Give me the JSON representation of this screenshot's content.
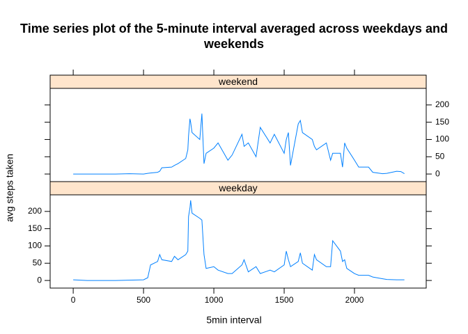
{
  "chart_data": {
    "type": "line",
    "title": "Time series plot of the 5-minute interval averaged across weekdays and weekends",
    "xlabel": "5min interval",
    "ylabel": "avg steps taken",
    "x": [
      0,
      100,
      200,
      300,
      400,
      500,
      530,
      550,
      600,
      615,
      630,
      700,
      720,
      745,
      800,
      815,
      820,
      830,
      835,
      845,
      900,
      915,
      930,
      945,
      1000,
      1030,
      1100,
      1130,
      1200,
      1215,
      1245,
      1300,
      1330,
      1400,
      1430,
      1500,
      1515,
      1530,
      1545,
      1600,
      1615,
      1630,
      1700,
      1715,
      1730,
      1800,
      1830,
      1845,
      1900,
      1915,
      1930,
      1945,
      2000,
      2030,
      2100,
      2130,
      2200,
      2230,
      2300,
      2330,
      2355
    ],
    "series": [
      {
        "name": "weekend",
        "color": "#0080ff",
        "values": [
          0,
          0,
          0,
          0,
          1,
          0,
          2,
          3,
          5,
          8,
          18,
          20,
          25,
          30,
          45,
          70,
          110,
          160,
          150,
          120,
          100,
          175,
          30,
          60,
          75,
          90,
          40,
          55,
          115,
          80,
          90,
          50,
          135,
          90,
          115,
          60,
          100,
          120,
          25,
          145,
          155,
          120,
          100,
          80,
          70,
          90,
          40,
          60,
          60,
          20,
          90,
          75,
          40,
          20,
          20,
          5,
          1,
          2,
          8,
          7,
          1
        ]
      },
      {
        "name": "weekday",
        "color": "#0080ff",
        "values": [
          2,
          0,
          0,
          0,
          1,
          2,
          8,
          45,
          55,
          75,
          60,
          55,
          70,
          60,
          75,
          85,
          185,
          210,
          232,
          195,
          180,
          175,
          75,
          35,
          40,
          30,
          20,
          20,
          45,
          60,
          25,
          40,
          20,
          30,
          25,
          45,
          85,
          60,
          40,
          55,
          80,
          50,
          30,
          75,
          60,
          40,
          40,
          115,
          85,
          55,
          60,
          35,
          20,
          15,
          15,
          10,
          5,
          3,
          2,
          2,
          2
        ]
      }
    ],
    "xlim": [
      -164,
      2510
    ],
    "xticks": [
      0,
      500,
      1000,
      1500,
      2000
    ],
    "ylim": [
      -22,
      248
    ],
    "yticks": [
      0,
      50,
      100,
      150,
      200
    ],
    "strip_color": "#ffe5cc"
  }
}
